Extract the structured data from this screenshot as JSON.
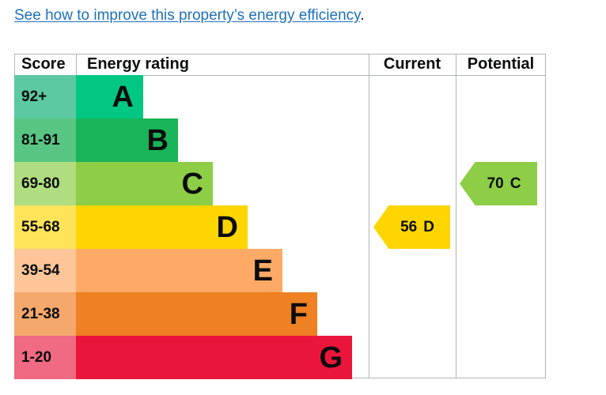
{
  "intro": {
    "link_text": "See how to improve this property’s energy efficiency",
    "trailing": "."
  },
  "chart_data": {
    "type": "table",
    "headers": {
      "score": "Score",
      "rating": "Energy rating",
      "current": "Current",
      "potential": "Potential"
    },
    "bands": [
      {
        "score": "92+",
        "letter": "A",
        "color": "#00c781",
        "score_color": "#5cc9a3",
        "min": 92,
        "max": 100
      },
      {
        "score": "81-91",
        "letter": "B",
        "color": "#19b459",
        "score_color": "#59c583",
        "min": 81,
        "max": 91
      },
      {
        "score": "69-80",
        "letter": "C",
        "color": "#8dce46",
        "score_color": "#b0dd80",
        "min": 69,
        "max": 80
      },
      {
        "score": "55-68",
        "letter": "D",
        "color": "#ffd500",
        "score_color": "#ffe45a",
        "min": 55,
        "max": 68
      },
      {
        "score": "39-54",
        "letter": "E",
        "color": "#fcaa65",
        "score_color": "#fdc699",
        "min": 39,
        "max": 54
      },
      {
        "score": "21-38",
        "letter": "F",
        "color": "#ef8023",
        "score_color": "#f4a86b",
        "min": 21,
        "max": 38
      },
      {
        "score": "1-20",
        "letter": "G",
        "color": "#e9153b",
        "score_color": "#f06a84",
        "min": 1,
        "max": 20
      }
    ],
    "current": {
      "value": 56,
      "letter": "D",
      "color": "#ffd500"
    },
    "potential": {
      "value": 70,
      "letter": "C",
      "color": "#8dce46"
    }
  }
}
